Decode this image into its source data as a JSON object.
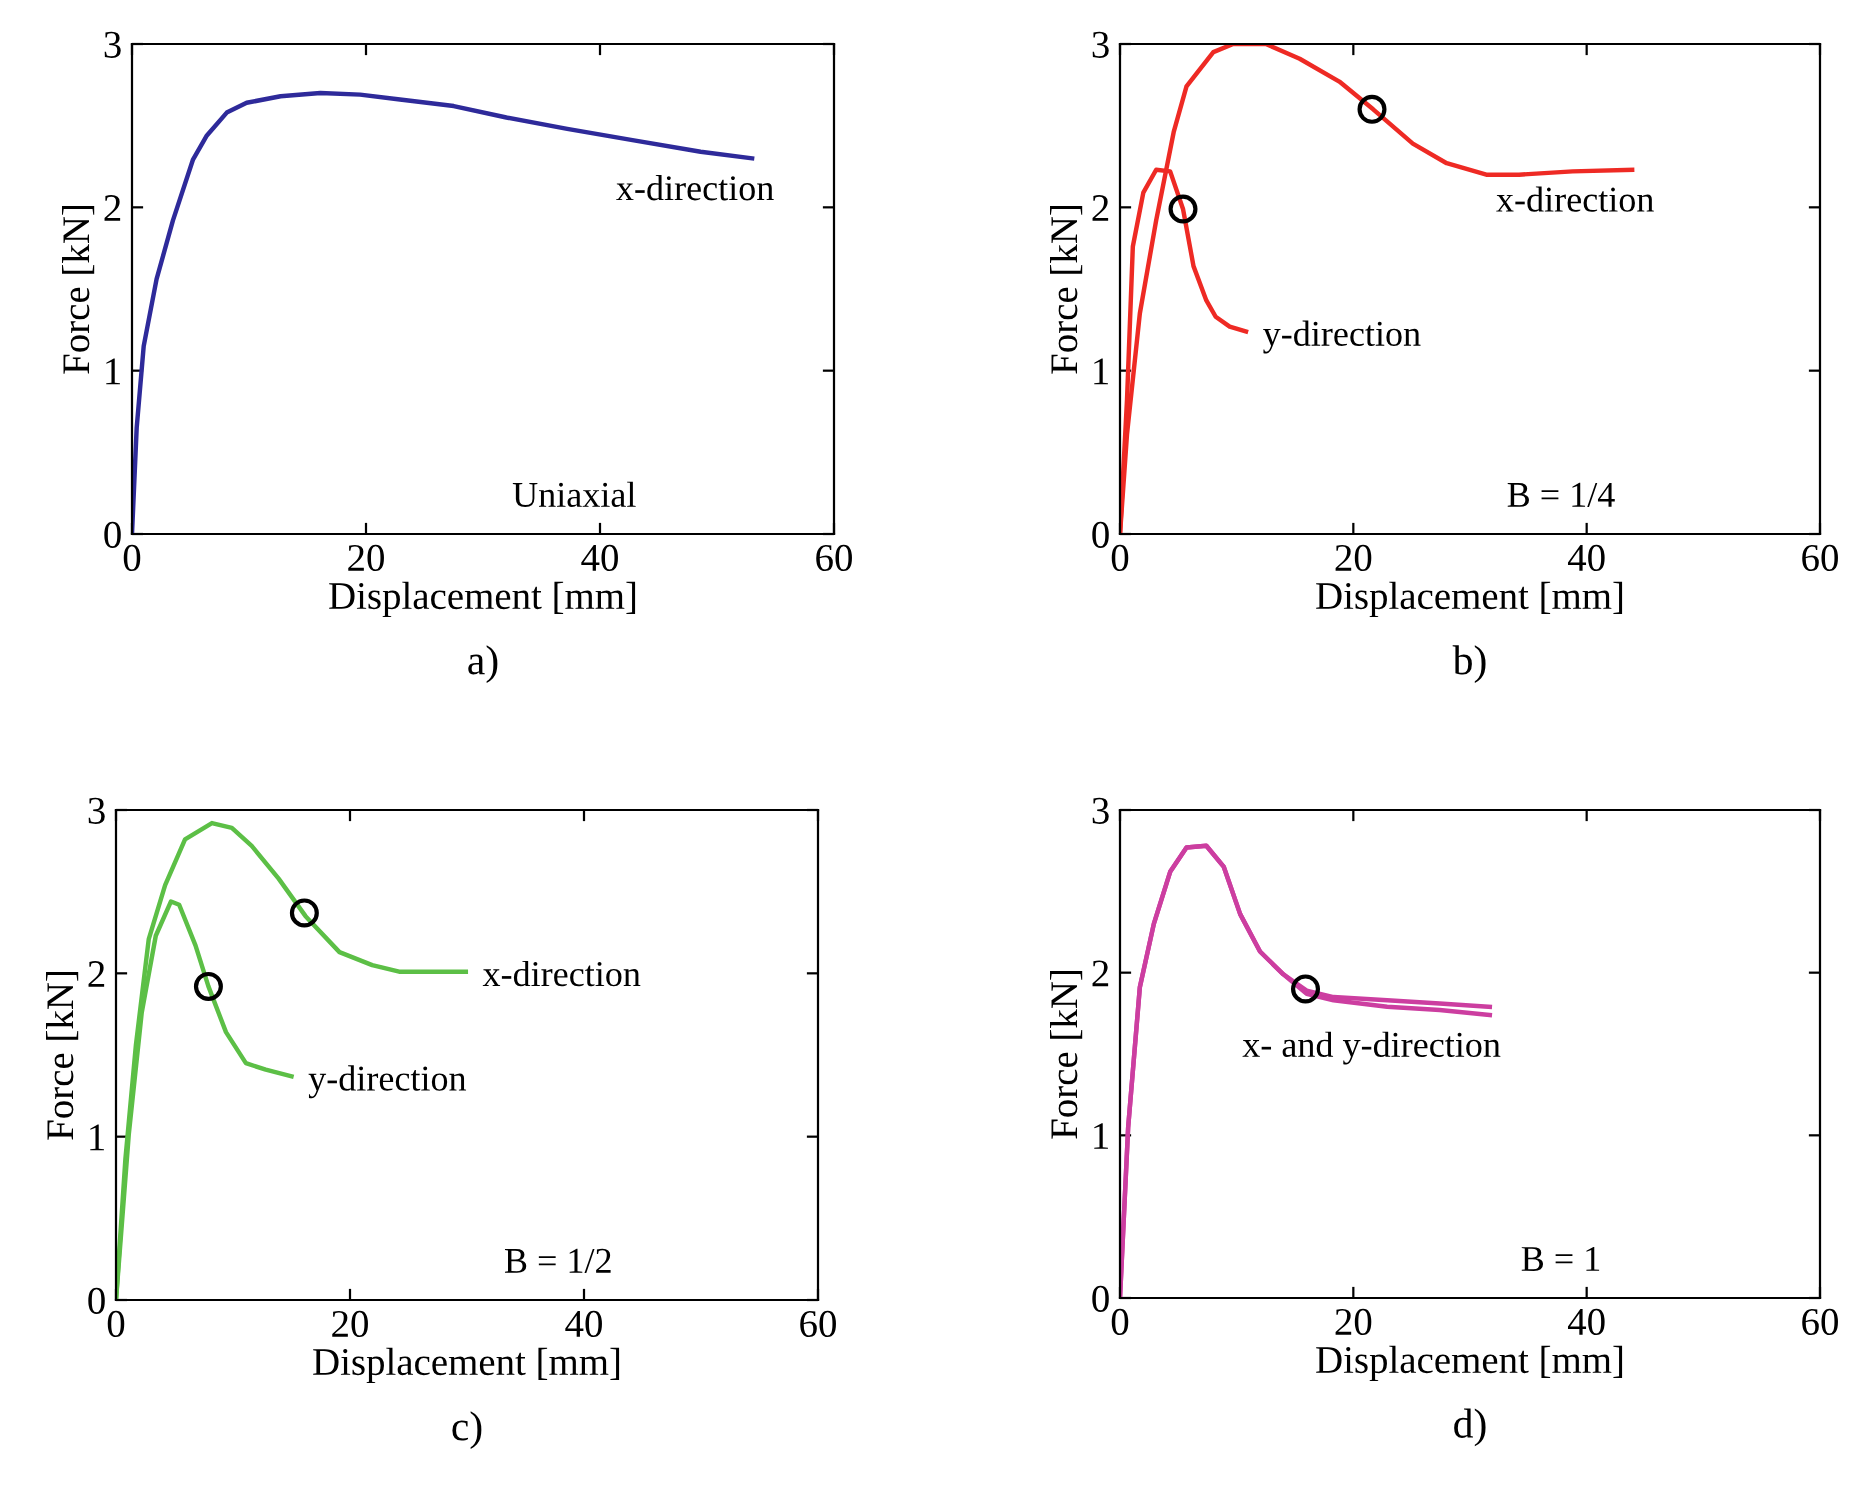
{
  "chart_data": [
    {
      "type": "line",
      "title": "a)",
      "xlabel": "Displacement [mm]",
      "ylabel": "Force [kN]",
      "xlim": [
        0,
        60
      ],
      "ylim": [
        0,
        3
      ],
      "xticks": [
        0,
        20,
        40,
        60
      ],
      "yticks": [
        0,
        1,
        2,
        3
      ],
      "grid": false,
      "legend": false,
      "annotations": [
        "Uniaxial"
      ],
      "series": [
        {
          "name": "x-direction",
          "color": "#2e2a9a",
          "x": [
            0,
            0.4,
            1,
            2.1,
            3.5,
            5.2,
            6.4,
            8.1,
            9.8,
            12.7,
            16.1,
            19.5,
            22.9,
            27.5,
            32,
            37.2,
            42.9,
            48.6,
            53
          ],
          "values": [
            0,
            0.65,
            1.15,
            1.56,
            1.92,
            2.29,
            2.44,
            2.58,
            2.64,
            2.68,
            2.7,
            2.69,
            2.66,
            2.62,
            2.55,
            2.48,
            2.41,
            2.34,
            2.3
          ]
        }
      ]
    },
    {
      "type": "line",
      "title": "b)",
      "xlabel": "Displacement [mm]",
      "ylabel": "Force [kN]",
      "xlim": [
        0,
        60
      ],
      "ylim": [
        0,
        3
      ],
      "xticks": [
        0,
        20,
        40,
        60
      ],
      "yticks": [
        0,
        1,
        2,
        3
      ],
      "grid": false,
      "legend": false,
      "annotations": [
        "B = 1/4"
      ],
      "series": [
        {
          "name": "x-direction",
          "color": "#ee2a24",
          "x": [
            0,
            0.6,
            1.7,
            3.1,
            4.6,
            5.7,
            8,
            9.7,
            12.5,
            15.4,
            18.8,
            21.7,
            25.1,
            28,
            31.4,
            34.2,
            38.8,
            43.9
          ],
          "values": [
            0,
            0.61,
            1.35,
            1.92,
            2.46,
            2.74,
            2.95,
            3.0,
            3.0,
            2.91,
            2.77,
            2.6,
            2.39,
            2.27,
            2.2,
            2.2,
            2.22,
            2.23
          ]
        },
        {
          "name": "y-direction",
          "color": "#ee2a24",
          "x": [
            0,
            0.6,
            1.1,
            2,
            3.1,
            4.3,
            5.4,
            6.3,
            7.4,
            8.2,
            9.4,
            10.8
          ],
          "values": [
            0,
            0.82,
            1.76,
            2.09,
            2.23,
            2.22,
            1.99,
            1.64,
            1.43,
            1.33,
            1.27,
            1.24
          ]
        },
        {
          "type": "scatter",
          "color": "#000000",
          "marker": "circle",
          "x": [
            21.6,
            5.4
          ],
          "values": [
            2.6,
            1.99
          ]
        }
      ]
    },
    {
      "type": "line",
      "title": "c)",
      "xlabel": "Displacement [mm]",
      "ylabel": "Force [kN]",
      "xlim": [
        0,
        60
      ],
      "ylim": [
        0,
        3
      ],
      "xticks": [
        0,
        20,
        40,
        60
      ],
      "yticks": [
        0,
        1,
        2,
        3
      ],
      "grid": false,
      "legend": false,
      "annotations": [
        "B = 1/2"
      ],
      "series": [
        {
          "name": "x-direction",
          "color": "#5cbf46",
          "x": [
            0,
            0.8,
            1.7,
            2.8,
            4.2,
            5.9,
            8.2,
            9.9,
            11.6,
            13.9,
            16.2,
            19.1,
            21.9,
            24.2,
            27,
            29.9
          ],
          "values": [
            0,
            0.86,
            1.56,
            2.21,
            2.54,
            2.82,
            2.92,
            2.89,
            2.78,
            2.58,
            2.35,
            2.13,
            2.05,
            2.01,
            2.01,
            2.01
          ]
        },
        {
          "name": "y-direction",
          "color": "#5cbf46",
          "x": [
            0,
            1.1,
            2.2,
            3.4,
            4.7,
            5.4,
            6.8,
            7.9,
            9.4,
            11.1,
            12.8,
            15
          ],
          "values": [
            0,
            1.02,
            1.76,
            2.23,
            2.44,
            2.42,
            2.17,
            1.92,
            1.64,
            1.45,
            1.41,
            1.37
          ]
        },
        {
          "type": "scatter",
          "color": "#000000",
          "marker": "circle",
          "x": [
            16.1,
            7.9
          ],
          "values": [
            2.37,
            1.92
          ]
        }
      ]
    },
    {
      "type": "line",
      "title": "d)",
      "xlabel": "Displacement [mm]",
      "ylabel": "Force [kN]",
      "xlim": [
        0,
        60
      ],
      "ylim": [
        0,
        3
      ],
      "xticks": [
        0,
        20,
        40,
        60
      ],
      "yticks": [
        0,
        1,
        2,
        3
      ],
      "grid": false,
      "legend": false,
      "annotations": [
        {
          "text": "x- and y-direction",
          "x": 31.7,
          "y": 1.74
        },
        "B = 1"
      ],
      "series": [
        {
          "color": "#cc3ea0",
          "x": [
            0,
            0.7,
            1.7,
            2.9,
            4.3,
            5.7,
            7.4,
            8.9,
            10.3,
            12,
            14,
            16,
            18.3,
            22.9,
            27.4,
            31.7
          ],
          "values": [
            0,
            1.05,
            1.91,
            2.3,
            2.62,
            2.77,
            2.78,
            2.65,
            2.36,
            2.13,
            1.99,
            1.89,
            1.85,
            1.83,
            1.81,
            1.79
          ]
        },
        {
          "color": "#cc3ea0",
          "x": [
            0,
            0.7,
            1.7,
            2.9,
            4.3,
            5.7,
            7.4,
            8.9,
            10.3,
            12,
            14,
            16,
            18.3,
            22.9,
            27.4,
            31.7
          ],
          "values": [
            0,
            1.05,
            1.91,
            2.3,
            2.62,
            2.77,
            2.78,
            2.65,
            2.36,
            2.13,
            1.99,
            1.87,
            1.83,
            1.79,
            1.77,
            1.74
          ]
        },
        {
          "type": "scatter",
          "color": "#000000",
          "marker": "circle",
          "x": [
            15.9
          ],
          "values": [
            1.9
          ]
        }
      ]
    }
  ]
}
